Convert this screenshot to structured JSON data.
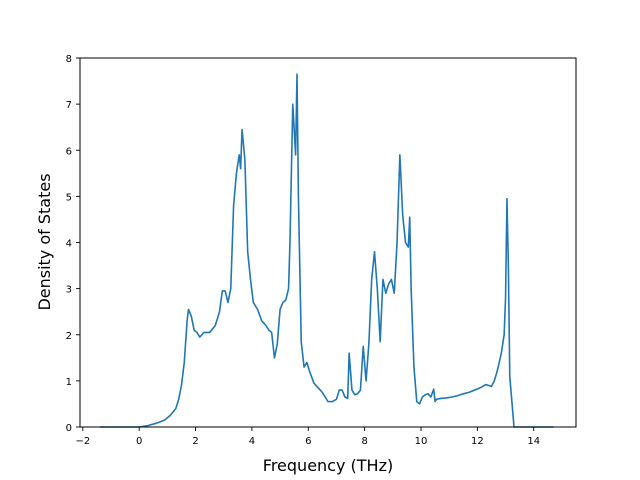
{
  "chart_data": {
    "type": "line",
    "title": "",
    "xlabel": "Frequency (THz)",
    "ylabel": "Density of States",
    "xlim": [
      -2.1,
      15.5
    ],
    "ylim": [
      0,
      8
    ],
    "xticks": [
      -2,
      0,
      2,
      4,
      6,
      8,
      10,
      12,
      14
    ],
    "yticks": [
      0,
      1,
      2,
      3,
      4,
      5,
      6,
      7,
      8
    ],
    "grid": false,
    "legend": "none",
    "series": [
      {
        "color": "#1f77b4",
        "x": [
          -1.4,
          0.0,
          0.3,
          0.6,
          0.9,
          1.1,
          1.3,
          1.4,
          1.5,
          1.6,
          1.7,
          1.75,
          1.85,
          1.95,
          2.05,
          2.15,
          2.3,
          2.5,
          2.7,
          2.85,
          2.95,
          3.05,
          3.15,
          3.25,
          3.35,
          3.45,
          3.55,
          3.6,
          3.65,
          3.75,
          3.85,
          3.95,
          4.05,
          4.2,
          4.35,
          4.5,
          4.6,
          4.7,
          4.8,
          4.9,
          5.0,
          5.1,
          5.2,
          5.3,
          5.35,
          5.45,
          5.55,
          5.6,
          5.65,
          5.75,
          5.85,
          5.95,
          6.05,
          6.2,
          6.35,
          6.5,
          6.7,
          6.85,
          7.0,
          7.1,
          7.2,
          7.3,
          7.4,
          7.45,
          7.55,
          7.65,
          7.75,
          7.85,
          7.95,
          8.05,
          8.15,
          8.25,
          8.35,
          8.45,
          8.55,
          8.65,
          8.75,
          8.85,
          8.95,
          9.05,
          9.15,
          9.25,
          9.35,
          9.45,
          9.55,
          9.6,
          9.65,
          9.75,
          9.85,
          9.95,
          10.05,
          10.15,
          10.25,
          10.35,
          10.45,
          10.5,
          10.55,
          10.7,
          10.9,
          11.1,
          11.3,
          11.5,
          11.7,
          11.9,
          12.1,
          12.3,
          12.5,
          12.6,
          12.7,
          12.85,
          12.95,
          13.0,
          13.05,
          13.1,
          13.15,
          13.3,
          14.7
        ],
        "y": [
          0.0,
          0.0,
          0.03,
          0.08,
          0.15,
          0.25,
          0.4,
          0.6,
          0.9,
          1.4,
          2.3,
          2.55,
          2.4,
          2.1,
          2.05,
          1.95,
          2.05,
          2.05,
          2.2,
          2.5,
          2.95,
          2.95,
          2.7,
          3.0,
          4.8,
          5.5,
          5.9,
          5.6,
          6.45,
          5.8,
          3.8,
          3.2,
          2.7,
          2.55,
          2.3,
          2.2,
          2.1,
          2.05,
          1.5,
          1.8,
          2.55,
          2.7,
          2.75,
          3.0,
          4.0,
          7.0,
          5.9,
          7.65,
          5.0,
          1.85,
          1.3,
          1.4,
          1.2,
          0.95,
          0.85,
          0.75,
          0.55,
          0.55,
          0.6,
          0.8,
          0.8,
          0.65,
          0.62,
          1.6,
          0.8,
          0.7,
          0.72,
          0.8,
          1.75,
          1.0,
          1.8,
          3.2,
          3.8,
          3.0,
          1.85,
          3.2,
          2.9,
          3.1,
          3.2,
          2.9,
          4.0,
          5.9,
          4.6,
          4.0,
          3.9,
          4.55,
          3.0,
          1.3,
          0.55,
          0.5,
          0.65,
          0.7,
          0.72,
          0.65,
          0.82,
          0.55,
          0.6,
          0.62,
          0.63,
          0.65,
          0.68,
          0.72,
          0.75,
          0.8,
          0.85,
          0.92,
          0.88,
          1.0,
          1.2,
          1.6,
          2.0,
          2.8,
          4.95,
          3.5,
          1.1,
          0.0,
          0.0
        ]
      }
    ]
  }
}
